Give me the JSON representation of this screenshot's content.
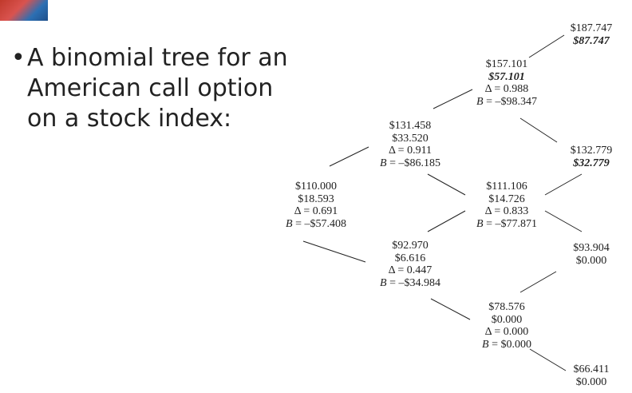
{
  "slide": {
    "bullet": "•",
    "text_lines": [
      "A binomial tree for an",
      "American call option",
      "on a stock index:"
    ]
  },
  "tree": {
    "nodes": [
      {
        "id": "n0",
        "stock": "$110.000",
        "option": "$18.593",
        "delta": "Δ = 0.691",
        "b_value": "= –$57.408",
        "early_exercise": false
      },
      {
        "id": "n1u",
        "stock": "$131.458",
        "option": "$33.520",
        "delta": "Δ = 0.911",
        "b_value": "= –$86.185",
        "early_exercise": false
      },
      {
        "id": "n1d",
        "stock": "$92.970",
        "option": "$6.616",
        "delta": "Δ = 0.447",
        "b_value": "= –$34.984",
        "early_exercise": false
      },
      {
        "id": "n2uu",
        "stock": "$157.101",
        "option": "$57.101",
        "delta": "Δ = 0.988",
        "b_value": "= –$98.347",
        "early_exercise": true
      },
      {
        "id": "n2ud",
        "stock": "$111.106",
        "option": "$14.726",
        "delta": "Δ = 0.833",
        "b_value": "= –$77.871",
        "early_exercise": false
      },
      {
        "id": "n2dd",
        "stock": "$78.576",
        "option": "$0.000",
        "delta": "Δ = 0.000",
        "b_value": "= $0.000",
        "early_exercise": false
      },
      {
        "id": "n3a",
        "stock": "$187.747",
        "option": "$87.747",
        "terminal": true,
        "early_exercise": true
      },
      {
        "id": "n3b",
        "stock": "$132.779",
        "option": "$32.779",
        "terminal": true,
        "early_exercise": true
      },
      {
        "id": "n3c",
        "stock": "$93.904",
        "option": "$0.000",
        "terminal": true,
        "early_exercise": false
      },
      {
        "id": "n3d",
        "stock": "$66.411",
        "option": "$0.000",
        "terminal": true,
        "early_exercise": false
      }
    ],
    "b_label": "B",
    "edges": [
      [
        "n0",
        "n1u"
      ],
      [
        "n0",
        "n1d"
      ],
      [
        "n1u",
        "n2uu"
      ],
      [
        "n1u",
        "n2ud"
      ],
      [
        "n1d",
        "n2ud"
      ],
      [
        "n1d",
        "n2dd"
      ],
      [
        "n2uu",
        "n3a"
      ],
      [
        "n2uu",
        "n3b"
      ],
      [
        "n2ud",
        "n3b"
      ],
      [
        "n2ud",
        "n3c"
      ],
      [
        "n2dd",
        "n3c"
      ],
      [
        "n2dd",
        "n3d"
      ]
    ],
    "line_color": "#222222"
  }
}
